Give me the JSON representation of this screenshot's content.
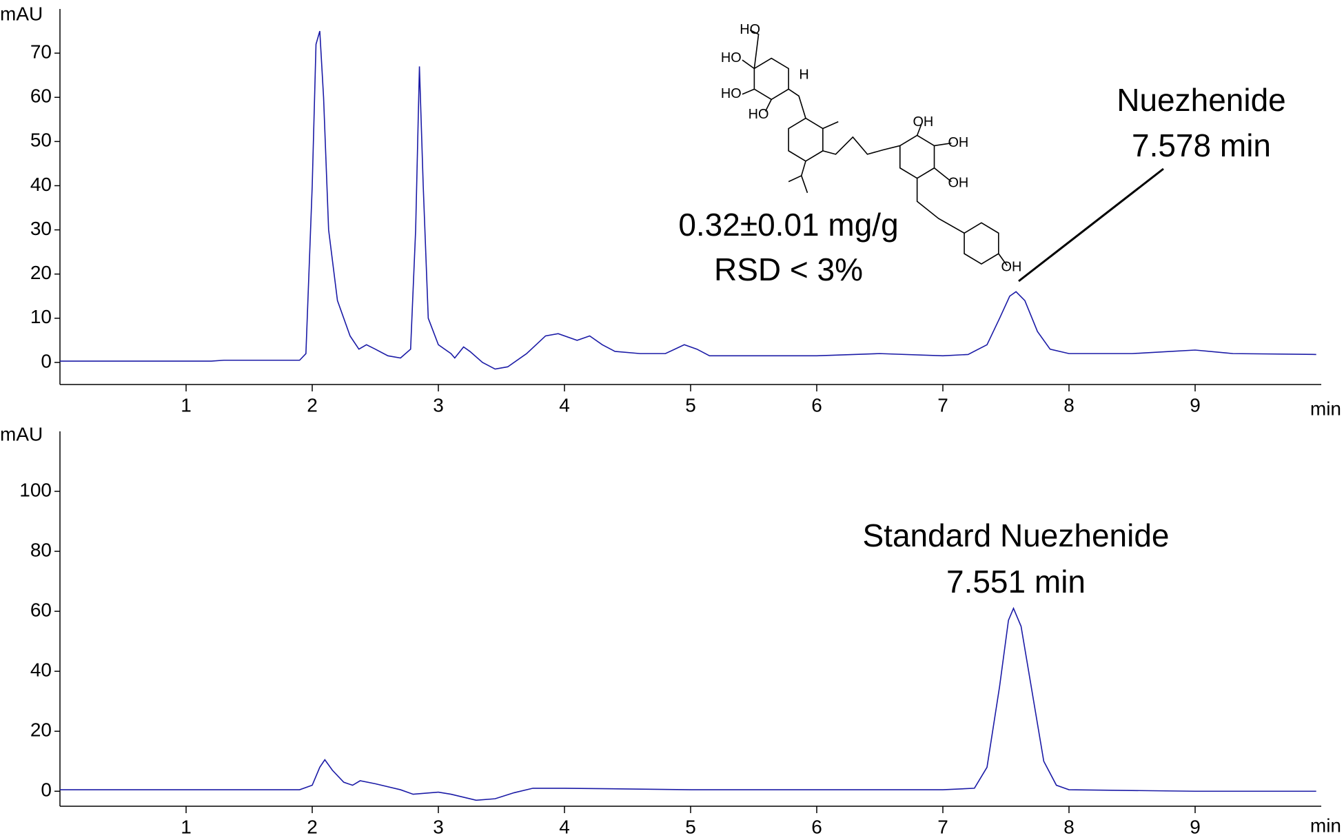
{
  "chart_data": [
    {
      "type": "line",
      "y_label": "mAU",
      "x_label": "min",
      "xlim": [
        0,
        10
      ],
      "xticks": [
        1,
        2,
        3,
        4,
        5,
        6,
        7,
        8,
        9
      ],
      "ylim": [
        -5,
        80
      ],
      "yticks": [
        0,
        10,
        20,
        30,
        40,
        50,
        60,
        70
      ],
      "x": [
        0,
        1.2,
        1.3,
        1.9,
        1.95,
        2.0,
        2.03,
        2.06,
        2.09,
        2.13,
        2.2,
        2.3,
        2.37,
        2.43,
        2.5,
        2.6,
        2.7,
        2.78,
        2.82,
        2.85,
        2.88,
        2.92,
        3.0,
        3.1,
        3.13,
        3.2,
        3.25,
        3.35,
        3.45,
        3.55,
        3.7,
        3.85,
        3.95,
        4.1,
        4.2,
        4.3,
        4.4,
        4.6,
        4.8,
        4.95,
        5.05,
        5.15,
        5.5,
        6.0,
        6.5,
        7.0,
        7.2,
        7.35,
        7.45,
        7.53,
        7.58,
        7.65,
        7.75,
        7.85,
        8.0,
        8.5,
        9.0,
        9.3,
        9.96
      ],
      "series": [
        {
          "color": "#1a1aa6",
          "values": [
            0.3,
            0.3,
            0.5,
            0.5,
            2,
            40,
            72,
            75,
            60,
            30,
            14,
            6,
            3,
            4,
            3,
            1.5,
            1,
            3,
            30,
            67,
            40,
            10,
            4,
            2,
            1,
            3.5,
            2.5,
            0,
            -1.5,
            -1,
            2,
            6,
            6.5,
            5,
            6,
            4,
            2.5,
            2,
            2,
            4,
            3,
            1.5,
            1.5,
            1.5,
            2,
            1.5,
            1.8,
            4,
            10,
            15,
            16,
            14,
            7,
            3,
            2,
            2,
            2.8,
            2,
            1.8
          ]
        }
      ],
      "annotations": [
        "Nuezhenide",
        "7.578 min",
        "0.32±0.01 mg/g",
        "RSD < 3%"
      ],
      "structure_labels": [
        "HO",
        "HO",
        "HO",
        "HO",
        "H",
        "OH",
        "OH",
        "OH",
        "OH"
      ]
    },
    {
      "type": "line",
      "y_label": "mAU",
      "x_label": "min",
      "xlim": [
        0,
        10
      ],
      "xticks": [
        1,
        2,
        3,
        4,
        5,
        6,
        7,
        8,
        9
      ],
      "ylim": [
        -5,
        120
      ],
      "yticks": [
        0,
        20,
        40,
        60,
        80,
        100
      ],
      "x": [
        0,
        1.9,
        2.0,
        2.06,
        2.1,
        2.16,
        2.25,
        2.32,
        2.38,
        2.5,
        2.7,
        2.8,
        3.0,
        3.1,
        3.3,
        3.45,
        3.6,
        3.75,
        4.0,
        5,
        6,
        7,
        7.25,
        7.35,
        7.45,
        7.52,
        7.56,
        7.62,
        7.7,
        7.8,
        7.9,
        8.0,
        9,
        9.96
      ],
      "series": [
        {
          "color": "#1a1aa6",
          "values": [
            0.5,
            0.5,
            2,
            8,
            10.5,
            7,
            3,
            2,
            3.5,
            2.5,
            0.5,
            -1,
            -0.3,
            -1,
            -3,
            -2.5,
            -0.5,
            1,
            1,
            0.5,
            0.5,
            0.5,
            1,
            8,
            35,
            57,
            61,
            55,
            35,
            10,
            2,
            0.5,
            0,
            0
          ]
        }
      ],
      "annotations": [
        "Standard Nuezhenide",
        "7.551 min"
      ]
    }
  ]
}
